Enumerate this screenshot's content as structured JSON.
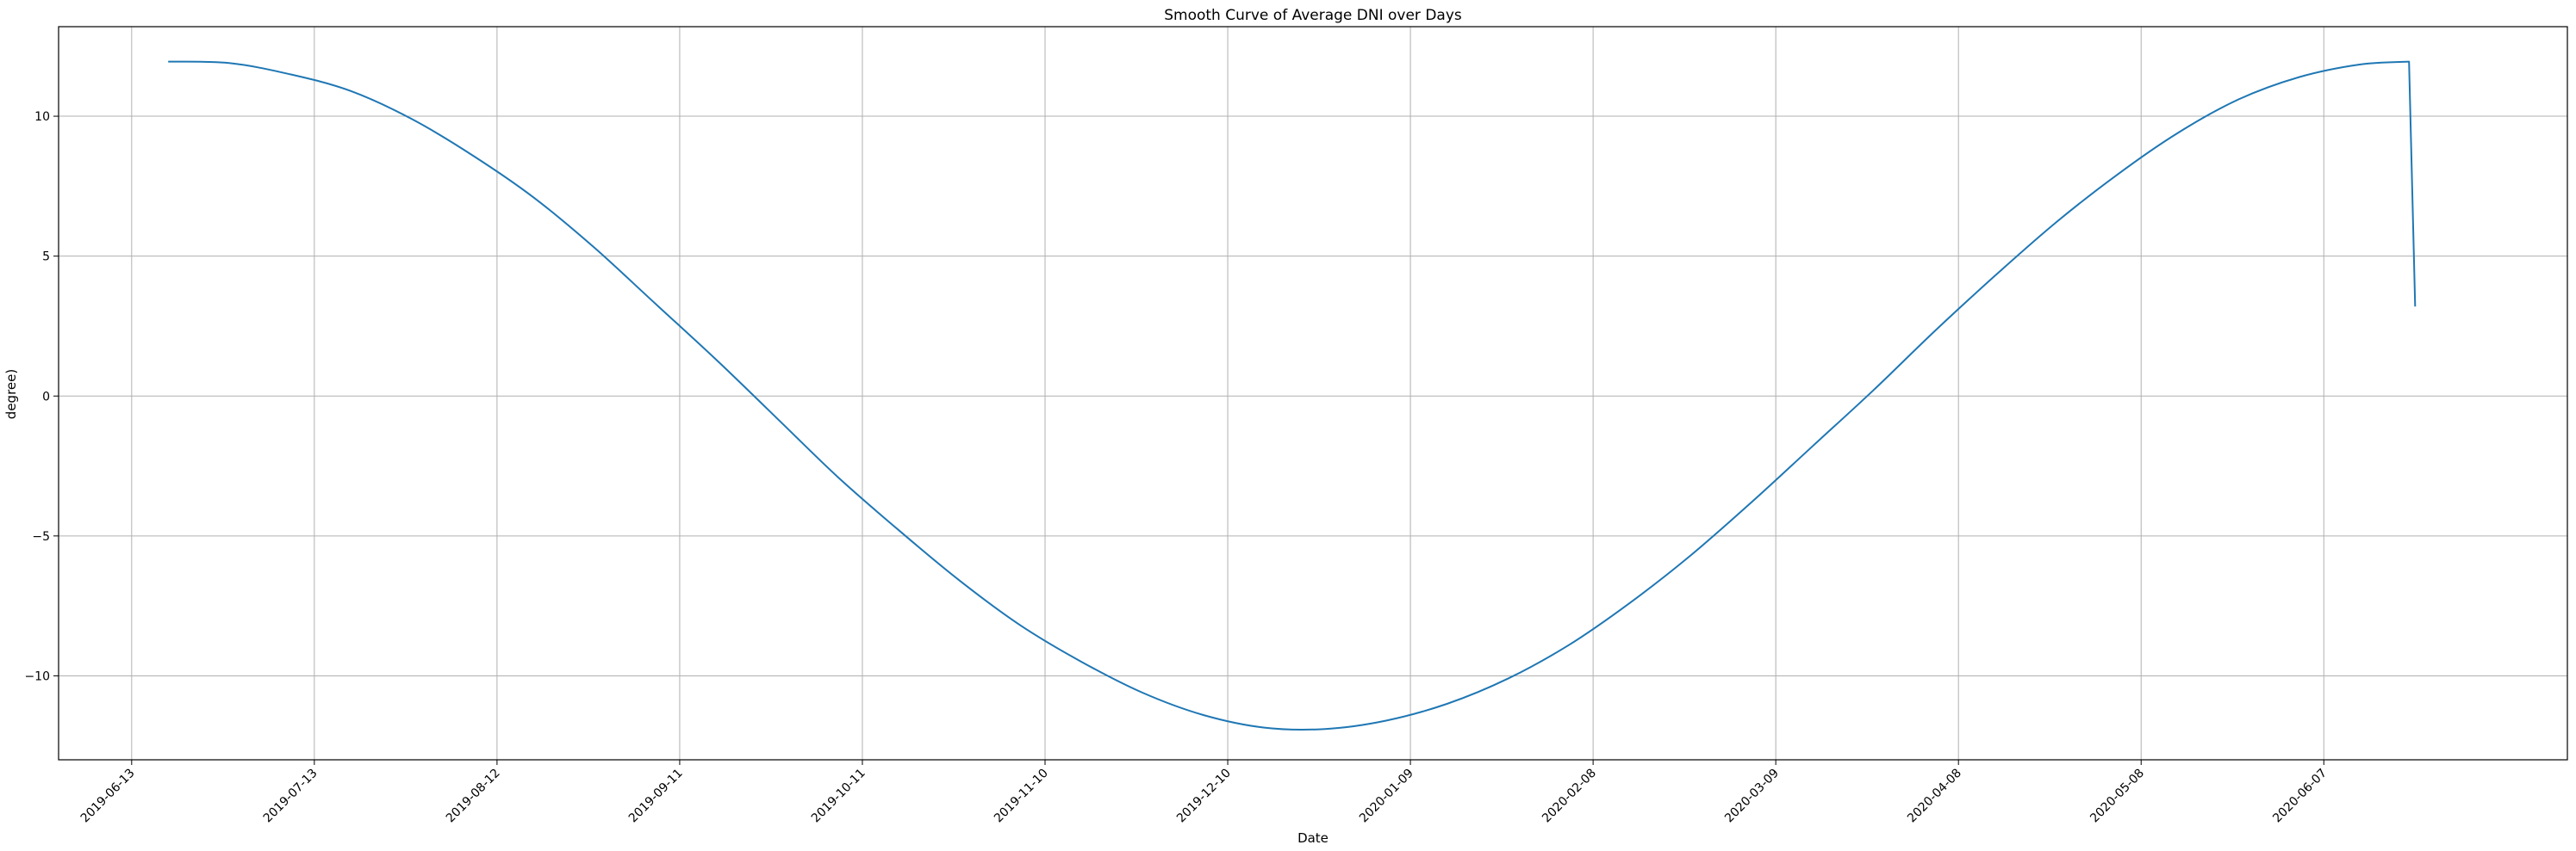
{
  "chart_data": {
    "type": "line",
    "title": "Smooth Curve of Average DNI over Days",
    "xlabel": "Date",
    "ylabel": "degree)",
    "grid": true,
    "legend": "none",
    "x_ticks": [
      "2019-06-13",
      "2019-07-13",
      "2019-08-12",
      "2019-09-11",
      "2019-10-11",
      "2019-11-10",
      "2019-12-10",
      "2020-01-09",
      "2020-02-08",
      "2020-03-09",
      "2020-04-08",
      "2020-05-08",
      "2020-06-07"
    ],
    "y_ticks": [
      -10,
      -5,
      0,
      5,
      10
    ],
    "y_tick_labels": [
      "−10",
      "−5",
      "0",
      "5",
      "10"
    ],
    "xlim": [
      "2019-06-01",
      "2020-07-17"
    ],
    "ylim": [
      -13,
      13.2
    ],
    "series": [
      {
        "color": "#1f77b4",
        "x": [
          "2019-06-19",
          "2019-06-29",
          "2019-07-09",
          "2019-07-19",
          "2019-07-29",
          "2019-08-08",
          "2019-08-18",
          "2019-08-28",
          "2019-09-07",
          "2019-09-17",
          "2019-09-27",
          "2019-10-07",
          "2019-10-17",
          "2019-10-27",
          "2019-11-06",
          "2019-11-16",
          "2019-11-26",
          "2019-12-06",
          "2019-12-16",
          "2019-12-26",
          "2020-01-05",
          "2020-01-15",
          "2020-01-25",
          "2020-02-04",
          "2020-02-14",
          "2020-02-24",
          "2020-03-05",
          "2020-03-15",
          "2020-03-25",
          "2020-04-04",
          "2020-04-14",
          "2020-04-24",
          "2020-05-04",
          "2020-05-14",
          "2020-05-24",
          "2020-06-03",
          "2020-06-13",
          "2020-06-21",
          "2020-06-22"
        ],
        "y": [
          11.95,
          11.9,
          11.5,
          10.9,
          9.9,
          8.6,
          7.1,
          5.3,
          3.3,
          1.3,
          -0.8,
          -2.9,
          -4.8,
          -6.6,
          -8.2,
          -9.5,
          -10.6,
          -11.4,
          -11.85,
          -11.9,
          -11.6,
          -11.0,
          -10.1,
          -8.9,
          -7.4,
          -5.7,
          -3.8,
          -1.8,
          0.2,
          2.3,
          4.3,
          6.2,
          7.9,
          9.4,
          10.6,
          11.4,
          11.85,
          11.95,
          3.2
        ]
      }
    ]
  }
}
